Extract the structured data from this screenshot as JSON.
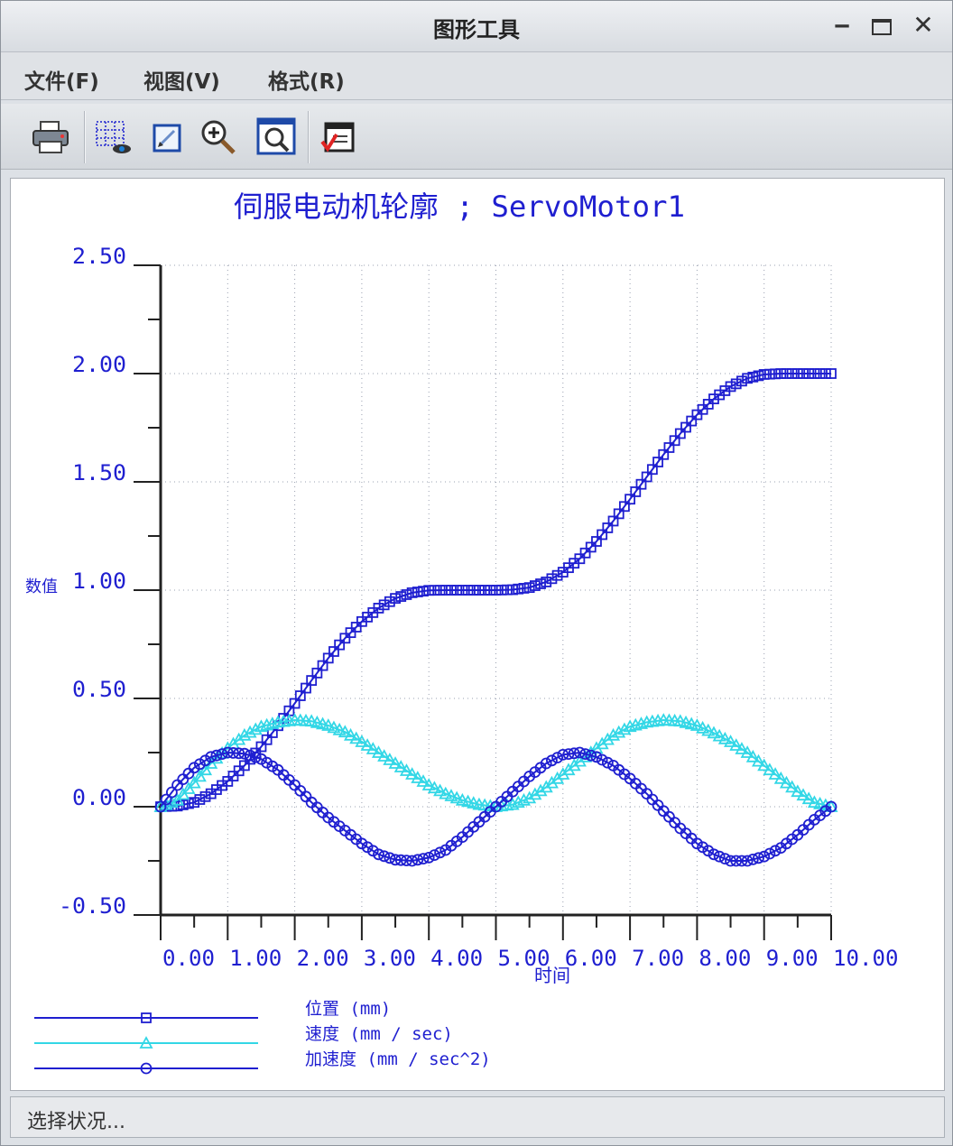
{
  "window": {
    "title": "图形工具",
    "minimize_glyph": "‒",
    "close_glyph": "✕"
  },
  "menu": [
    {
      "label": "文件(F)"
    },
    {
      "label": "视图(V)"
    },
    {
      "label": "格式(R)"
    }
  ],
  "toolbar": {
    "icons": [
      "print-icon",
      "grid-view-icon",
      "edit-graph-icon",
      "zoom-in-icon",
      "zoom-fit-icon",
      "export-icon"
    ]
  },
  "status": {
    "text": "选择状况..."
  },
  "chart_data": {
    "type": "scatter",
    "title": "伺服电动机轮廓 ; ServoMotor1",
    "xlabel": "时间",
    "ylabel": "数值",
    "xlim": [
      0,
      10
    ],
    "ylim": [
      -0.5,
      2.5
    ],
    "xticks": [
      "0.00",
      "1.00",
      "2.00",
      "3.00",
      "4.00",
      "5.00",
      "6.00",
      "7.00",
      "8.00",
      "9.00",
      "10.00"
    ],
    "yticks": [
      "-0.50",
      "0.00",
      "0.50",
      "1.00",
      "1.50",
      "2.00",
      "2.50"
    ],
    "grid": true,
    "legend_position": "bottom-left",
    "series": [
      {
        "name": "位置 (mm)",
        "marker": "square",
        "color": "#1f1fd0",
        "x": [
          0,
          0.25,
          0.5,
          0.75,
          1,
          1.25,
          1.5,
          1.75,
          2,
          2.25,
          2.5,
          2.75,
          3,
          3.25,
          3.5,
          3.75,
          4,
          4.25,
          4.5,
          4.75,
          5,
          5.25,
          5.5,
          5.75,
          6,
          6.25,
          6.5,
          6.75,
          7,
          7.25,
          7.5,
          7.75,
          8,
          8.25,
          8.5,
          8.75,
          9,
          9.25,
          9.5,
          9.75,
          10
        ],
        "y": [
          0,
          0.003,
          0.02,
          0.06,
          0.117,
          0.19,
          0.277,
          0.374,
          0.477,
          0.583,
          0.686,
          0.778,
          0.855,
          0.917,
          0.962,
          0.988,
          0.999,
          1.0,
          1.0,
          1.0,
          1.0,
          1.002,
          1.012,
          1.038,
          1.083,
          1.145,
          1.225,
          1.319,
          1.42,
          1.523,
          1.626,
          1.723,
          1.81,
          1.883,
          1.94,
          1.978,
          1.996,
          2.0,
          2.0,
          2.0,
          2.0
        ]
      },
      {
        "name": "速度 (mm / sec)",
        "marker": "triangle",
        "color": "#33d7e6",
        "x": [
          0,
          0.25,
          0.5,
          0.75,
          1,
          1.25,
          1.5,
          1.75,
          2,
          2.25,
          2.5,
          2.75,
          3,
          3.25,
          3.5,
          3.75,
          4,
          4.25,
          4.5,
          4.75,
          5,
          5.25,
          5.5,
          5.75,
          6,
          6.25,
          6.5,
          6.75,
          7,
          7.25,
          7.5,
          7.75,
          8,
          8.25,
          8.5,
          8.75,
          9,
          9.25,
          9.5,
          9.75,
          10
        ],
        "y": [
          0,
          0.03,
          0.11,
          0.2,
          0.27,
          0.33,
          0.37,
          0.39,
          0.4,
          0.395,
          0.375,
          0.345,
          0.3,
          0.25,
          0.2,
          0.15,
          0.1,
          0.06,
          0.03,
          0.01,
          0,
          0.01,
          0.04,
          0.09,
          0.15,
          0.21,
          0.27,
          0.33,
          0.37,
          0.39,
          0.4,
          0.395,
          0.375,
          0.34,
          0.3,
          0.25,
          0.19,
          0.13,
          0.07,
          0.02,
          0
        ]
      },
      {
        "name": "加速度 (mm / sec^2)",
        "marker": "circle",
        "color": "#1f1fd0",
        "x": [
          0,
          0.25,
          0.5,
          0.75,
          1,
          1.25,
          1.5,
          1.75,
          2,
          2.25,
          2.5,
          2.75,
          3,
          3.25,
          3.5,
          3.75,
          4,
          4.25,
          4.5,
          4.75,
          5,
          5.25,
          5.5,
          5.75,
          6,
          6.25,
          6.5,
          6.75,
          7,
          7.25,
          7.5,
          7.75,
          8,
          8.25,
          8.5,
          8.75,
          9,
          9.25,
          9.5,
          9.75,
          10
        ],
        "y": [
          0,
          0.1,
          0.18,
          0.23,
          0.25,
          0.245,
          0.22,
          0.17,
          0.1,
          0.02,
          -0.05,
          -0.11,
          -0.17,
          -0.22,
          -0.245,
          -0.25,
          -0.235,
          -0.2,
          -0.14,
          -0.07,
          0,
          0.07,
          0.14,
          0.2,
          0.24,
          0.25,
          0.23,
          0.19,
          0.13,
          0.06,
          -0.02,
          -0.1,
          -0.17,
          -0.22,
          -0.25,
          -0.25,
          -0.23,
          -0.19,
          -0.13,
          -0.06,
          0
        ]
      }
    ]
  }
}
